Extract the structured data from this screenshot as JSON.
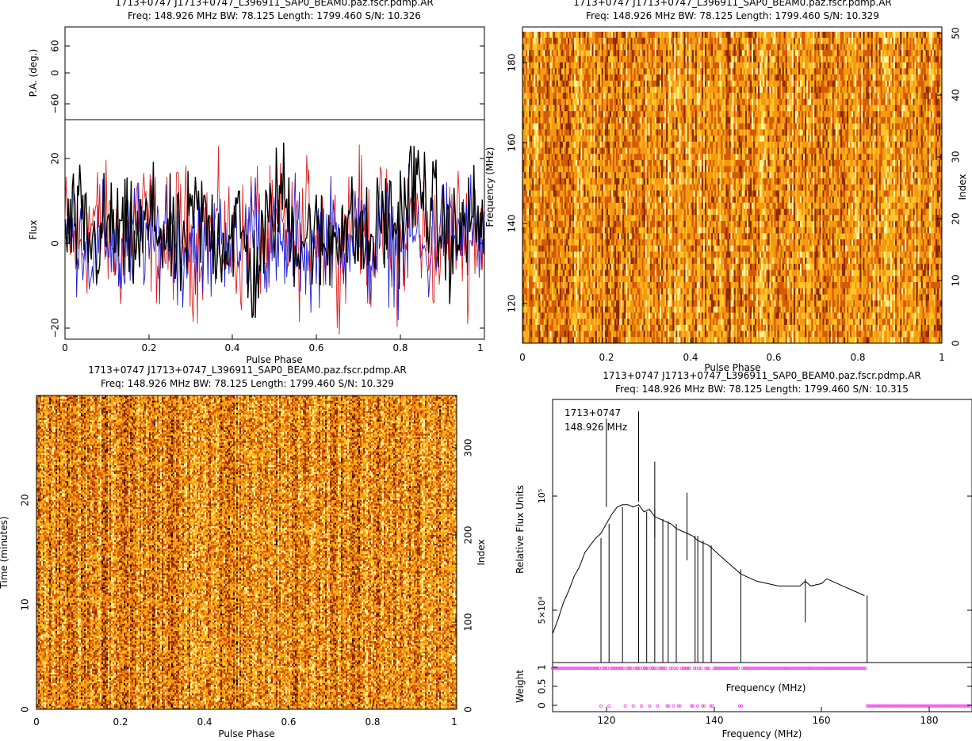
{
  "chart_data": [
    {
      "id": "profile",
      "type": "line",
      "title": "1713+0747 J1713+0747_L396911_SAP0_BEAM0.paz.fscr.pdmp.AR",
      "subtitle": "Freq: 148.926 MHz BW: 78.125 Length: 1799.460 S/N: 10.326",
      "pa_panel": {
        "ylabel": "P.A. (deg.)",
        "ylim": [
          -90,
          90
        ],
        "yticks": [
          "60",
          "0",
          "−60"
        ],
        "yticks_values": [
          60,
          0,
          -60
        ]
      },
      "flux_panel": {
        "ylabel": "Flux",
        "ylim": [
          -22,
          26
        ],
        "yticks": [
          "20",
          "0",
          "−20"
        ],
        "yticks_values": [
          20,
          0,
          -20
        ]
      },
      "xlabel": "Pulse Phase",
      "xlim": [
        0,
        1
      ],
      "xticks": [
        "0",
        "0.2",
        "0.4",
        "0.6",
        "0.8",
        "1"
      ],
      "series": [
        {
          "color": "#e02020",
          "role": "linear polarization",
          "noise_level": 7,
          "values": [
            4,
            -6,
            9,
            2,
            -5,
            12,
            3,
            -4,
            8,
            -7,
            6,
            1,
            -8,
            10,
            -3,
            5,
            -6,
            9,
            2,
            -5,
            15,
            -2,
            4,
            -7,
            11,
            0,
            -5,
            7,
            -3,
            9
          ]
        },
        {
          "color": "#2020d0",
          "role": "circular polarization",
          "noise_level": 6,
          "values": [
            -3,
            5,
            -9,
            2,
            -12,
            6,
            -4,
            8,
            -7,
            1,
            -10,
            4,
            -6,
            9,
            -2,
            -8,
            3,
            -11,
            5,
            -4,
            7,
            -9,
            2,
            -6,
            4,
            -10,
            6,
            -3,
            8,
            -5
          ]
        },
        {
          "color": "#000000",
          "role": "total intensity",
          "noise_level": 6,
          "values": [
            2,
            8,
            -4,
            6,
            1,
            -3,
            9,
            0,
            -6,
            12,
            4,
            -2,
            7,
            -19,
            5,
            22,
            -1,
            3,
            -5,
            8,
            2,
            -4,
            10,
            6,
            25,
            18,
            3,
            -2,
            9,
            4
          ]
        }
      ]
    },
    {
      "id": "freq-phase",
      "type": "heatmap",
      "title": "1713+0747 J1713+0747_L396911_SAP0_BEAM0.paz.fscr.pdmp.AR",
      "subtitle": "Freq: 148.926 MHz BW: 78.125 Length: 1799.460 S/N: 10.329",
      "xlabel": "Pulse Phase",
      "ylabel": "Frequency (MHz)",
      "y2label": "Index",
      "xlim": [
        0,
        1
      ],
      "ylim": [
        110,
        188
      ],
      "y2lim": [
        0,
        51
      ],
      "xticks": [
        "0",
        "0.2",
        "0.4",
        "0.6",
        "0.8",
        "1"
      ],
      "yticks": [
        "120",
        "140",
        "160",
        "180"
      ],
      "yticks_values": [
        120,
        140,
        160,
        180
      ],
      "y2ticks": [
        "0",
        "10",
        "20",
        "30",
        "40",
        "50"
      ],
      "y2ticks_values": [
        0,
        10,
        20,
        30,
        40,
        50
      ],
      "n_rows": 51,
      "n_cols": 260,
      "colormap": [
        "#fff3a0",
        "#ffc62a",
        "#f59a10",
        "#d45a08",
        "#8a2a00"
      ]
    },
    {
      "id": "time-phase",
      "type": "heatmap",
      "title": "1713+0747 J1713+0747_L396911_SAP0_BEAM0.paz.fscr.pdmp.AR",
      "subtitle": "Freq: 148.926 MHz BW: 78.125 Length: 1799.460 S/N: 10.329",
      "xlabel": "Pulse Phase",
      "ylabel": "Time (minutes)",
      "y2label": "Index",
      "xlim": [
        0,
        1
      ],
      "ylim": [
        0,
        29.99
      ],
      "y2lim": [
        0,
        359
      ],
      "xticks": [
        "0",
        "0.2",
        "0.4",
        "0.6",
        "0.8",
        "1"
      ],
      "yticks": [
        "0",
        "10",
        "20"
      ],
      "yticks_values": [
        0,
        10,
        20
      ],
      "y2ticks": [
        "0",
        "100",
        "200",
        "300"
      ],
      "y2ticks_values": [
        0,
        100,
        200,
        300
      ],
      "n_rows": 180,
      "n_cols": 265,
      "colormap": [
        "#fff3a0",
        "#ffc62a",
        "#f59a10",
        "#d45a08",
        "#8a2a00",
        "#200000"
      ]
    },
    {
      "id": "bandpass",
      "type": "line",
      "title": "1713+0747 J1713+0747_L396911_SAP0_BEAM0.paz.fscr.pdmp.AR",
      "subtitle": "Freq: 148.926 MHz BW: 78.125 Length: 1799.460 S/N: 10.315",
      "annotation": [
        "1713+0747",
        "148.926 MHz"
      ],
      "xlabel": "Frequency (MHz)",
      "inner_xlabel": "Frequency (MHz)",
      "ylabel": "Relative Flux Units",
      "xlim": [
        110,
        188
      ],
      "ylim": [
        30000,
        140000
      ],
      "xticks": [
        "120",
        "140",
        "160",
        "180"
      ],
      "xticks_values": [
        120,
        140,
        160,
        180
      ],
      "yticks": [
        "5×10⁴",
        "10⁵"
      ],
      "yticks_values": [
        50000,
        100000
      ],
      "x": [
        110,
        111,
        112,
        113,
        114,
        115,
        116,
        117,
        118,
        119,
        120,
        121,
        122,
        123,
        124,
        125,
        126,
        127,
        128,
        129,
        130,
        131,
        132,
        133,
        134,
        135,
        136,
        137,
        138,
        139,
        140,
        141,
        142,
        143,
        144,
        145,
        146,
        147,
        148,
        150,
        152,
        154,
        156,
        157,
        158,
        160,
        161,
        162,
        164,
        166,
        168
      ],
      "y": [
        42000,
        48000,
        55000,
        60000,
        66000,
        70000,
        76000,
        79000,
        82000,
        84000,
        88000,
        92000,
        95000,
        96000,
        96000,
        95000,
        96000,
        93000,
        94000,
        91000,
        90000,
        89000,
        88000,
        86000,
        85000,
        84000,
        83000,
        81000,
        80000,
        79000,
        77000,
        75000,
        73000,
        71000,
        69000,
        67000,
        66000,
        65000,
        64000,
        63000,
        62000,
        62000,
        62000,
        64000,
        62000,
        63000,
        65000,
        64000,
        62000,
        60000,
        58000
      ],
      "spikes": [
        {
          "x": 120,
          "y": 132000
        },
        {
          "x": 126,
          "y": 135000
        },
        {
          "x": 129,
          "y": 114000
        },
        {
          "x": 135,
          "y": 101000
        },
        {
          "x": 157,
          "y": 65000
        }
      ],
      "dropouts": [
        119,
        120.5,
        123,
        126,
        127.5,
        129,
        130.5,
        131.5,
        133,
        136.5,
        137,
        138,
        139.5,
        145
      ],
      "cutoff_x": 168.5,
      "weight_panel": {
        "ylabel": "Weight",
        "ylim": [
          -0.15,
          1.15
        ],
        "yticks": [
          "0",
          "0.5",
          "1"
        ],
        "yticks_values": [
          0,
          0.5,
          1
        ],
        "color": "#ee44ee",
        "zero_weight_channels": [
          119,
          120.5,
          123.5,
          125,
          126.5,
          128,
          129.5,
          131.5,
          132.5,
          133.5,
          136,
          137,
          138,
          139.5,
          145
        ]
      }
    }
  ]
}
